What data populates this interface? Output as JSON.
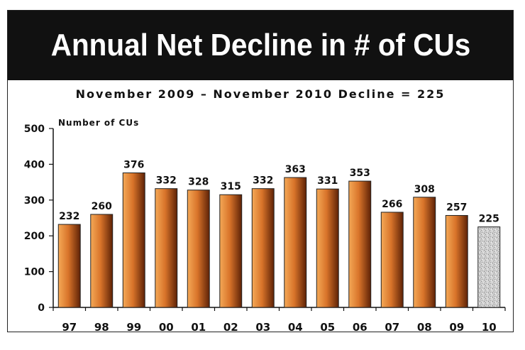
{
  "header": {
    "title": "Annual Net Decline in # of CUs"
  },
  "colors": {
    "banner_bg": "#111111",
    "bar_light": "#f0a050",
    "bar_dark": "#6e2a08",
    "highlight_bar": "#c8c8c8"
  },
  "chart_data": {
    "type": "bar",
    "title": "Annual Net Decline in # of CUs",
    "subtitle": "November 2009 – November 2010 Decline = 225",
    "ylabel": "Number of CUs",
    "xlabel": "",
    "categories": [
      "97",
      "98",
      "99",
      "00",
      "01",
      "02",
      "03",
      "04",
      "05",
      "06",
      "07",
      "08",
      "09",
      "10"
    ],
    "values": [
      232,
      260,
      376,
      332,
      328,
      315,
      332,
      363,
      331,
      353,
      266,
      308,
      257,
      225
    ],
    "highlight_category": "10",
    "ylim": [
      0,
      500
    ],
    "yticks": [
      0,
      100,
      200,
      300,
      400,
      500
    ],
    "grid": false,
    "legend": "none"
  }
}
